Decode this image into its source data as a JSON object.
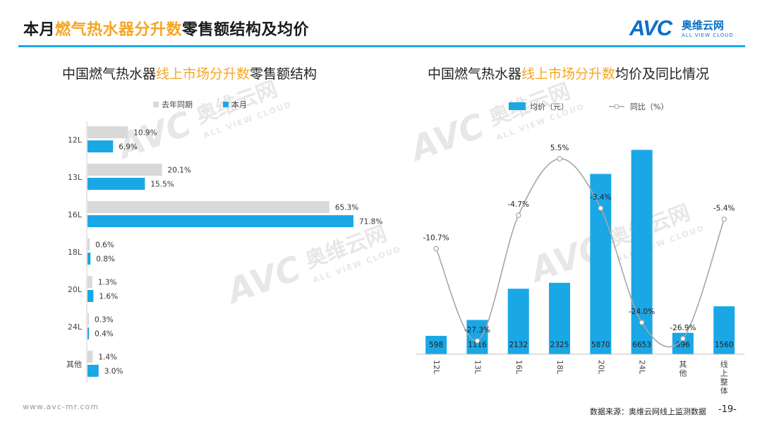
{
  "header": {
    "title_prefix": "本月",
    "title_highlight": "燃气热水器分升数",
    "title_suffix": "零售额结构及均价",
    "logo_mark": "AVC",
    "logo_cn": "奥维云网",
    "logo_en": "ALL VIEW CLOUD"
  },
  "watermark": {
    "mark": "AVC",
    "cn": "奥维云网",
    "en": "ALL VIEW CLOUD"
  },
  "footer": {
    "url": "www.avc-mr.com",
    "source": "数据来源：奥维云网线上监测数据",
    "page": "-19-"
  },
  "colors": {
    "accent": "#1aa7e6",
    "highlight": "#f5a623",
    "last_year": "#d9d9d9",
    "line": "#a6a6a6"
  },
  "chart_data": [
    {
      "type": "bar",
      "orientation": "horizontal",
      "title_prefix": "中国燃气热水器",
      "title_highlight": "线上市场分升数",
      "title_suffix": "零售额结构",
      "categories": [
        "12L",
        "13L",
        "16L",
        "18L",
        "20L",
        "24L",
        "其他"
      ],
      "series": [
        {
          "name": "去年同期",
          "values": [
            10.9,
            20.1,
            65.3,
            0.6,
            1.3,
            0.3,
            1.4
          ],
          "labels": [
            "10.9%",
            "20.1%",
            "65.3%",
            "0.6%",
            "1.3%",
            "0.3%",
            "1.4%"
          ]
        },
        {
          "name": "本月",
          "values": [
            6.9,
            15.5,
            71.8,
            0.8,
            1.6,
            0.4,
            3.0
          ],
          "labels": [
            "6.9%",
            "15.5%",
            "71.8%",
            "0.8%",
            "1.6%",
            "0.4%",
            "3.0%"
          ]
        }
      ],
      "xlim": [
        0,
        80
      ],
      "legend": "top"
    },
    {
      "type": "bar+line",
      "title_prefix": "中国燃气热水器",
      "title_highlight": "线上市场分升数",
      "title_suffix": "均价及同比情况",
      "categories": [
        "12L",
        "13L",
        "16L",
        "18L",
        "20L",
        "24L",
        "其他",
        "线上整体"
      ],
      "bar_series": {
        "name": "均价（元）",
        "values": [
          598,
          1116,
          2132,
          2325,
          5870,
          6653,
          696,
          1560
        ],
        "labels": [
          "598",
          "1116",
          "2132",
          "2325",
          "5870",
          "6653",
          "696",
          "1560"
        ]
      },
      "line_series": {
        "name": "同比（%）",
        "values": [
          -10.7,
          -27.3,
          -4.7,
          5.5,
          -3.4,
          -24.0,
          -26.9,
          -5.4
        ],
        "labels": [
          "-10.7%",
          "-27.3%",
          "-4.7%",
          "5.5%",
          "-3.4%",
          "-24.0%",
          "-26.9%",
          "-5.4%"
        ]
      },
      "bar_ylim": [
        0,
        6800
      ],
      "line_ylim": [
        -30,
        8
      ],
      "legend": "top"
    }
  ]
}
